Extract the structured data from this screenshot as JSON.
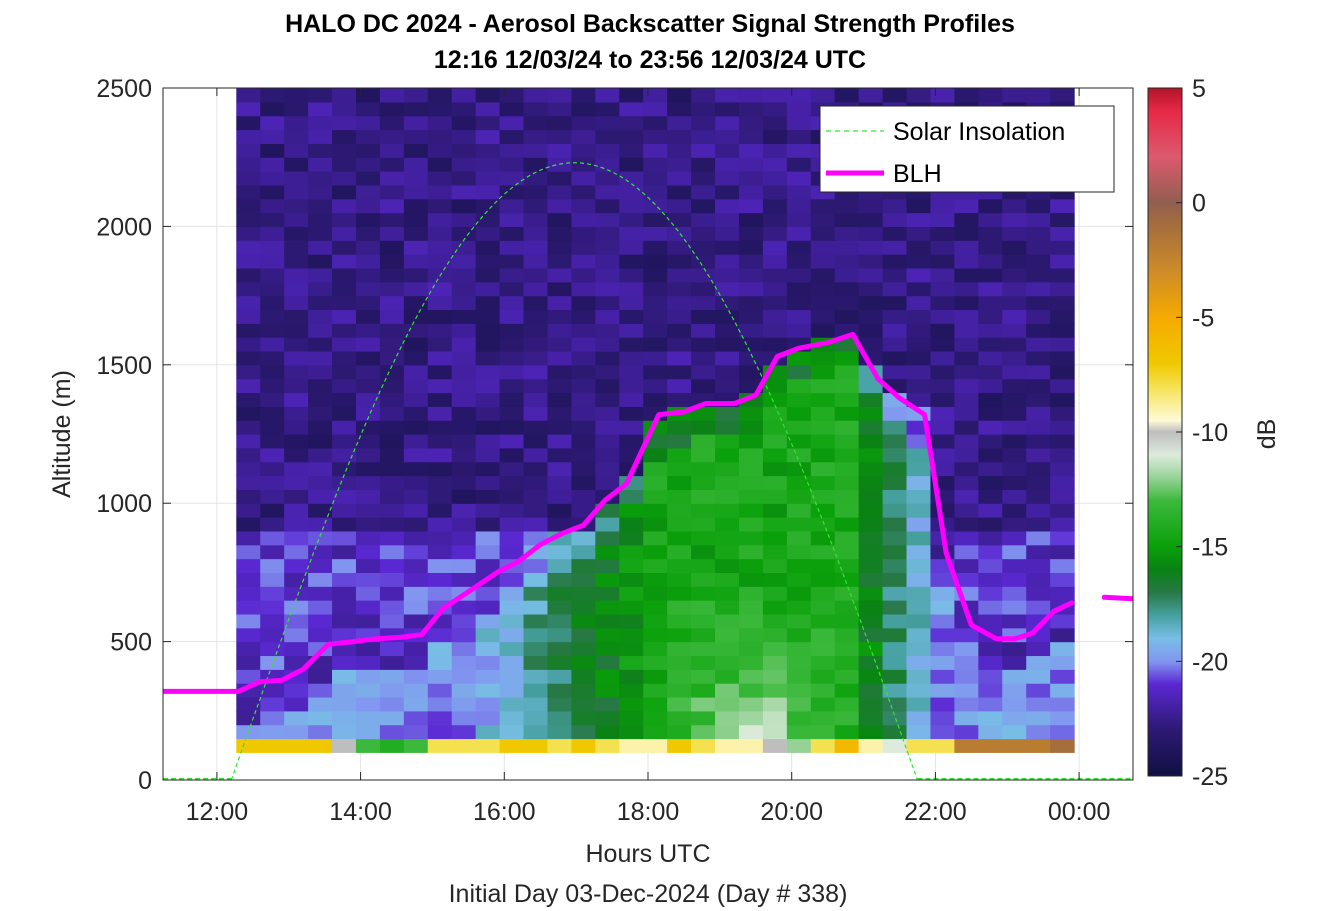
{
  "chart_data": {
    "type": "heatmap",
    "title": "HALO DC 2024 - Aerosol Backscatter Signal Strength Profiles",
    "subtitle": "12:16 12/03/24 to 23:56 12/03/24  UTC",
    "xlabel": "Hours UTC",
    "xlabel2": "Initial Day 03-Dec-2024 (Day # 338)",
    "ylabel": "Altitude (m)",
    "xlim": [
      11.25,
      24.75
    ],
    "ylim": [
      0,
      2500
    ],
    "x_ticks": [
      12,
      14,
      16,
      18,
      20,
      22,
      24
    ],
    "x_tick_labels": [
      "12:00",
      "14:00",
      "16:00",
      "18:00",
      "20:00",
      "22:00",
      "00:00"
    ],
    "y_ticks": [
      0,
      500,
      1000,
      1500,
      2000,
      2500
    ],
    "y_tick_labels": [
      "0",
      "500",
      "1000",
      "1500",
      "2000",
      "2500"
    ],
    "grid": true,
    "colorbar": {
      "label": "dB",
      "range": [
        -25,
        5
      ],
      "ticks": [
        5,
        0,
        -5,
        -10,
        -15,
        -20,
        -25
      ],
      "tick_labels": [
        "5",
        "0",
        "-5",
        "-10",
        "-15",
        "-20",
        "-25"
      ]
    },
    "legend": {
      "placement": "top-right",
      "entries": [
        {
          "label": "Solar Insolation",
          "color": "#33e633",
          "style": "dashed"
        },
        {
          "label": "BLH",
          "color": "#ff00ff",
          "style": "solid"
        }
      ]
    },
    "heatmap": {
      "x_start_hour": 12.27,
      "x_end_hour": 23.93,
      "n_columns": 35,
      "y_bottom": 100,
      "y_top": 2500,
      "cell_height": 50,
      "near_surface_values_db": [
        -7,
        -7,
        -7,
        -7,
        -10,
        -13,
        -14,
        -13,
        -8,
        -8,
        -8,
        -7,
        -7,
        -8,
        -7,
        -8,
        -9,
        -9,
        -7,
        -8,
        -9,
        -9,
        -10,
        -12,
        -8,
        -6,
        -9,
        -11,
        -8,
        -8,
        -2,
        -2,
        -2,
        -2,
        -1
      ]
    },
    "series": [
      {
        "name": "BLH",
        "color": "#ff00ff",
        "x": [
          11.25,
          11.9,
          12.3,
          12.6,
          12.9,
          13.2,
          13.55,
          13.9,
          14.2,
          14.55,
          14.85,
          15.15,
          15.5,
          15.9,
          16.2,
          16.5,
          16.8,
          17.1,
          17.4,
          17.7,
          18.15,
          18.5,
          18.8,
          19.2,
          19.5,
          19.8,
          20.1,
          20.5,
          20.85,
          21.2,
          21.5,
          21.85,
          22.15,
          22.5,
          22.85,
          23.1,
          23.35,
          23.65,
          23.9
        ],
        "y": [
          320,
          320,
          320,
          355,
          360,
          400,
          490,
          500,
          510,
          515,
          525,
          620,
          680,
          750,
          790,
          850,
          890,
          920,
          1010,
          1070,
          1320,
          1330,
          1360,
          1360,
          1390,
          1530,
          1560,
          1580,
          1610,
          1450,
          1380,
          1320,
          820,
          560,
          510,
          510,
          530,
          610,
          640
        ]
      },
      {
        "name": "BLH",
        "color": "#ff00ff",
        "x": [
          24.35,
          24.75
        ],
        "y": [
          660,
          655
        ]
      },
      {
        "name": "Solar Insolation",
        "color": "#33e633",
        "style": "dashed",
        "x": [
          12.2,
          17.0,
          21.75
        ],
        "y": [
          0,
          2230,
          0
        ]
      }
    ]
  }
}
